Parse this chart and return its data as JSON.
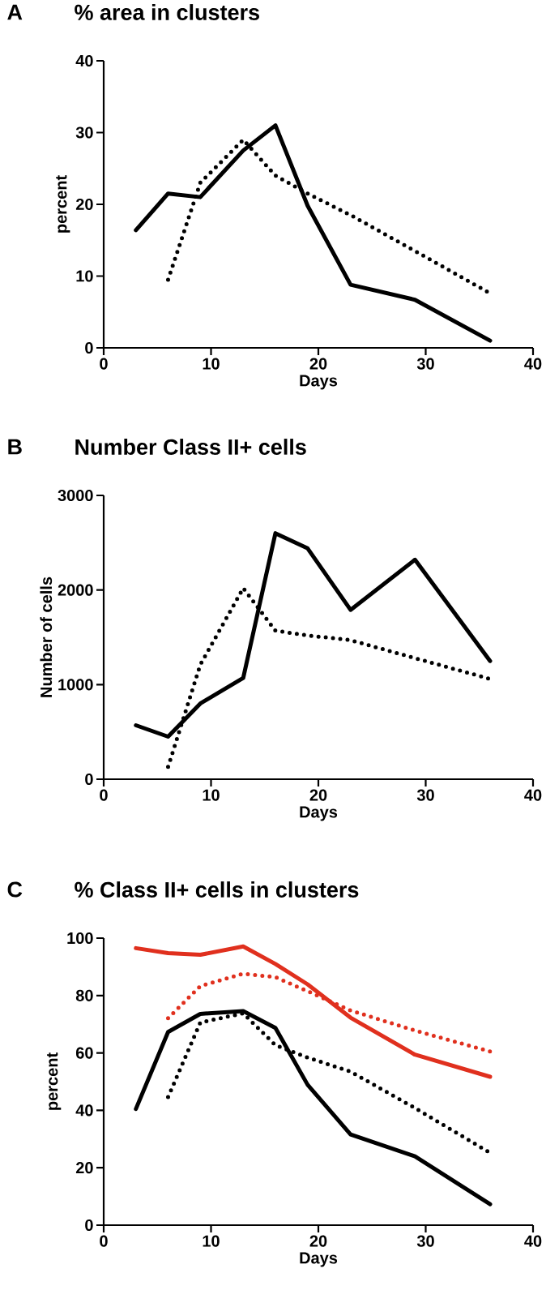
{
  "chart_data": [
    {
      "type": "line",
      "title": "% area in clusters",
      "annotations": [
        "A"
      ],
      "xlabel": "Days",
      "ylabel": "percent",
      "xlim": [
        0,
        40
      ],
      "ylim": [
        0,
        40
      ],
      "xticks": [
        0,
        10,
        20,
        30,
        40
      ],
      "yticks": [
        0,
        10,
        20,
        30,
        40
      ],
      "series": [
        {
          "color": "#000000",
          "line_style": "solid",
          "x": [
            3,
            6,
            9,
            13,
            16,
            19,
            23,
            29,
            36
          ],
          "values": [
            16.4,
            21.5,
            21,
            27.5,
            31,
            19.8,
            8.8,
            6.7,
            1
          ]
        },
        {
          "color": "#000000",
          "line_style": "dotted",
          "x": [
            6,
            9,
            13,
            16,
            19,
            23,
            29,
            36
          ],
          "values": [
            9.5,
            23,
            29,
            24,
            21.5,
            18.5,
            13.5,
            7.6
          ]
        }
      ]
    },
    {
      "type": "line",
      "title": "Number Class II+ cells",
      "annotations": [
        "B"
      ],
      "xlabel": "Days",
      "ylabel": "Number of cells",
      "xlim": [
        0,
        40
      ],
      "ylim": [
        0,
        3000
      ],
      "xticks": [
        0,
        10,
        20,
        30,
        40
      ],
      "yticks": [
        0,
        1000,
        2000,
        3000
      ],
      "series": [
        {
          "color": "#000000",
          "line_style": "solid",
          "x": [
            3,
            6,
            9,
            13,
            16,
            19,
            23,
            29,
            36
          ],
          "values": [
            570,
            450,
            800,
            1070,
            2600,
            2440,
            1790,
            2320,
            1250
          ]
        },
        {
          "color": "#000000",
          "line_style": "dotted",
          "x": [
            6,
            9,
            13,
            16,
            19,
            23,
            29,
            36
          ],
          "values": [
            130,
            1210,
            2020,
            1570,
            1520,
            1470,
            1280,
            1060
          ]
        }
      ]
    },
    {
      "type": "line",
      "title": "% Class II+ cells in clusters",
      "annotations": [
        "C"
      ],
      "xlabel": "Days",
      "ylabel": "percent",
      "xlim": [
        0,
        40
      ],
      "ylim": [
        0,
        100
      ],
      "xticks": [
        0,
        10,
        20,
        30,
        40
      ],
      "yticks": [
        0,
        20,
        40,
        60,
        80,
        100
      ],
      "series": [
        {
          "color": "#e0301e",
          "line_style": "solid",
          "x": [
            3,
            6,
            9,
            13,
            16,
            19,
            23,
            29,
            36
          ],
          "values": [
            96.5,
            94.8,
            94.2,
            97.1,
            91,
            83.9,
            72.3,
            59.4,
            51.7
          ]
        },
        {
          "color": "#e0301e",
          "line_style": "dotted",
          "x": [
            6,
            9,
            13,
            16,
            19,
            23,
            29,
            36
          ],
          "values": [
            72.1,
            83.3,
            87.6,
            86.4,
            81.5,
            74.8,
            67.8,
            60.5
          ]
        },
        {
          "color": "#000000",
          "line_style": "solid",
          "x": [
            3,
            6,
            9,
            13,
            16,
            19,
            23,
            29,
            36
          ],
          "values": [
            40.5,
            67.3,
            73.6,
            74.6,
            68.7,
            48.9,
            31.6,
            24,
            7.3
          ]
        },
        {
          "color": "#000000",
          "line_style": "dotted",
          "x": [
            6,
            9,
            13,
            16,
            19,
            23,
            29,
            36
          ],
          "values": [
            44.6,
            70.6,
            73.8,
            62.7,
            58.4,
            53.5,
            40.8,
            25.2
          ]
        }
      ]
    }
  ]
}
